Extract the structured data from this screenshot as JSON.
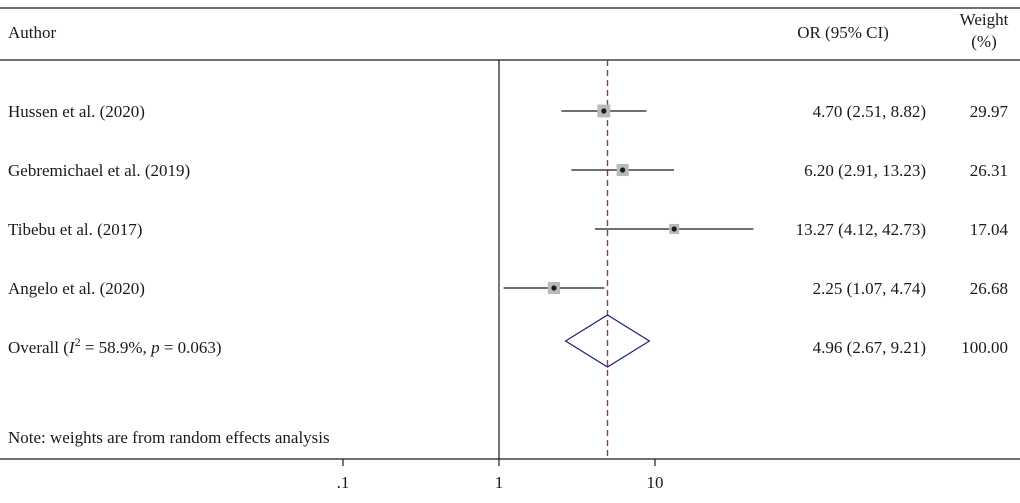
{
  "chart_data": {
    "type": "forest",
    "x_scale": "log",
    "x_ticks": [
      {
        "value": 0.1,
        "label": ".1"
      },
      {
        "value": 1,
        "label": "1"
      },
      {
        "value": 10,
        "label": "10"
      }
    ],
    "null_line": 1,
    "overall_line": 4.96,
    "columns": {
      "author": "Author",
      "or_ci": "OR (95% CI)",
      "weight_line1": "Weight",
      "weight_line2": "(%)"
    },
    "studies": [
      {
        "author": "Hussen et al. (2020)",
        "or": 4.7,
        "lo": 2.51,
        "hi": 8.82,
        "or_ci_text": "4.70 (2.51, 8.82)",
        "weight": 29.97,
        "weight_text": "29.97"
      },
      {
        "author": "Gebremichael et al. (2019)",
        "or": 6.2,
        "lo": 2.91,
        "hi": 13.23,
        "or_ci_text": "6.20 (2.91, 13.23)",
        "weight": 26.31,
        "weight_text": "26.31"
      },
      {
        "author": "Tibebu et al. (2017)",
        "or": 13.27,
        "lo": 4.12,
        "hi": 42.73,
        "or_ci_text": "13.27 (4.12, 42.73)",
        "weight": 17.04,
        "weight_text": "17.04"
      },
      {
        "author": "Angelo et al. (2020)",
        "or": 2.25,
        "lo": 1.07,
        "hi": 4.74,
        "or_ci_text": "2.25 (1.07, 4.74)",
        "weight": 26.68,
        "weight_text": "26.68"
      }
    ],
    "overall": {
      "label_prefix": "Overall (",
      "i_symbol": "I",
      "i_sup": "2",
      "i_value": " = 58.9%, ",
      "p_symbol": "p",
      "p_value": " = 0.063)",
      "or": 4.96,
      "lo": 2.67,
      "hi": 9.21,
      "or_ci_text": "4.96 (2.67, 9.21)",
      "weight_text": "100.00"
    },
    "note": "Note: weights are from random effects analysis",
    "colors": {
      "marker_box": "#b9b9b9",
      "diamond": "#1f1f7a",
      "overall_line": "#a8324a",
      "line": "#1a1a1a"
    }
  }
}
